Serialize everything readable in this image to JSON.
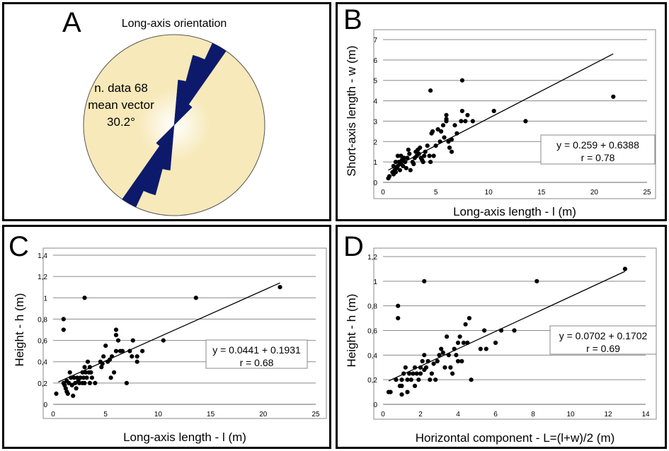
{
  "colors": {
    "rose": "#0d1a6b",
    "disc": "#f7e9b9",
    "grid": "#8a8a8a",
    "point": "#000000"
  },
  "chart_data": [
    {
      "panel": "A",
      "type": "rose",
      "title": "Long-axis orientation",
      "annotation": [
        "n. data 68",
        "mean vector",
        "30.2°"
      ],
      "petals": [
        {
          "azimuth": 10,
          "r": 0.5
        },
        {
          "azimuth": 20,
          "r": 0.8
        },
        {
          "azimuth": 30,
          "r": 1.0
        },
        {
          "azimuth": 40,
          "r": 0.28
        }
      ]
    },
    {
      "panel": "B",
      "type": "scatter",
      "xlabel": "Long-axis length - l (m)",
      "ylabel": "Short-axis length - w (m)",
      "xlim": [
        0,
        25
      ],
      "ylim": [
        0,
        7
      ],
      "xticks": [
        "0",
        "5",
        "10",
        "15",
        "20",
        "25"
      ],
      "yticks": [
        "0",
        "1",
        "2",
        "3",
        "4",
        "5",
        "6",
        "7"
      ],
      "fit_line": [
        [
          0.5,
          0.6
        ],
        [
          21.8,
          6.3
        ]
      ],
      "equation": "y = 0.259 + 0.6388",
      "r": "r = 0.78",
      "points": [
        [
          0.5,
          0.2
        ],
        [
          0.6,
          0.3
        ],
        [
          0.9,
          0.5
        ],
        [
          1.0,
          0.4
        ],
        [
          1.1,
          0.6
        ],
        [
          1.2,
          0.5
        ],
        [
          1.3,
          0.7
        ],
        [
          1.4,
          0.8
        ],
        [
          1.5,
          1.0
        ],
        [
          1.6,
          0.6
        ],
        [
          1.7,
          0.9
        ],
        [
          1.8,
          1.1
        ],
        [
          1.9,
          0.8
        ],
        [
          2.0,
          1.2
        ],
        [
          2.1,
          1.0
        ],
        [
          2.2,
          0.7
        ],
        [
          1.4,
          1.3
        ],
        [
          1.7,
          1.3
        ],
        [
          2.3,
          1.2
        ],
        [
          2.5,
          1.4
        ],
        [
          2.6,
          0.6
        ],
        [
          2.8,
          1.0
        ],
        [
          3.0,
          1.2
        ],
        [
          3.1,
          1.5
        ],
        [
          3.2,
          1.3
        ],
        [
          3.3,
          1.6
        ],
        [
          3.4,
          1.4
        ],
        [
          3.5,
          1.7
        ],
        [
          3.6,
          1.2
        ],
        [
          3.8,
          1.0
        ],
        [
          4.0,
          1.5
        ],
        [
          4.2,
          1.8
        ],
        [
          4.4,
          1.3
        ],
        [
          4.5,
          1.0
        ],
        [
          4.6,
          2.4
        ],
        [
          4.7,
          2.5
        ],
        [
          4.8,
          1.3
        ],
        [
          4.5,
          4.5
        ],
        [
          5.0,
          1.8
        ],
        [
          5.2,
          2.6
        ],
        [
          5.5,
          2.5
        ],
        [
          5.7,
          2.8
        ],
        [
          5.8,
          2.2
        ],
        [
          6.0,
          3.0
        ],
        [
          6.0,
          3.3
        ],
        [
          6.0,
          3.1
        ],
        [
          6.2,
          2.0
        ],
        [
          6.3,
          1.7
        ],
        [
          6.5,
          1.5
        ],
        [
          6.5,
          2.1
        ],
        [
          7.0,
          2.4
        ],
        [
          7.4,
          3.0
        ],
        [
          7.5,
          3.5
        ],
        [
          7.5,
          5.0
        ],
        [
          7.8,
          3.0
        ],
        [
          8.0,
          3.3
        ],
        [
          8.5,
          3.0
        ],
        [
          10.5,
          3.5
        ],
        [
          13.5,
          3.0
        ],
        [
          21.8,
          4.2
        ],
        [
          1.0,
          0.8
        ],
        [
          2.4,
          1.6
        ],
        [
          3.9,
          1.3
        ],
        [
          5.4,
          2.0
        ],
        [
          1.2,
          1.0
        ],
        [
          2.9,
          0.9
        ],
        [
          3.7,
          1.1
        ],
        [
          6.8,
          2.8
        ]
      ]
    },
    {
      "panel": "C",
      "type": "scatter",
      "xlabel": "Long-axis length - l (m)",
      "ylabel": "Height - h (m)",
      "xlim": [
        0,
        25
      ],
      "ylim": [
        0,
        1.4
      ],
      "xticks": [
        "0",
        "5",
        "10",
        "15",
        "20",
        "25"
      ],
      "yticks": [
        "0",
        "0,2",
        "0,4",
        "0,6",
        "0,8",
        "1",
        "1,2",
        "1,4"
      ],
      "fit_line": [
        [
          0.5,
          0.21
        ],
        [
          21.6,
          1.14
        ]
      ],
      "equation": "y = 0.0441 + 0.1931",
      "r": "r = 0.68",
      "points": [
        [
          0.3,
          0.1
        ],
        [
          1.0,
          0.8
        ],
        [
          1.0,
          0.7
        ],
        [
          1.0,
          0.2
        ],
        [
          1.1,
          0.18
        ],
        [
          1.2,
          0.15
        ],
        [
          1.3,
          0.22
        ],
        [
          1.4,
          0.1
        ],
        [
          1.5,
          0.2
        ],
        [
          1.6,
          0.3
        ],
        [
          1.7,
          0.25
        ],
        [
          1.8,
          0.18
        ],
        [
          1.9,
          0.08
        ],
        [
          2.0,
          0.25
        ],
        [
          2.1,
          0.2
        ],
        [
          2.2,
          0.15
        ],
        [
          2.3,
          0.25
        ],
        [
          2.5,
          0.2
        ],
        [
          2.6,
          0.25
        ],
        [
          2.8,
          0.2
        ],
        [
          2.8,
          0.3
        ],
        [
          2.9,
          0.25
        ],
        [
          3.0,
          0.2
        ],
        [
          3.0,
          0.35
        ],
        [
          3.0,
          1.0
        ],
        [
          3.1,
          0.3
        ],
        [
          3.2,
          0.25
        ],
        [
          3.3,
          0.4
        ],
        [
          3.4,
          0.3
        ],
        [
          3.5,
          0.35
        ],
        [
          3.5,
          0.2
        ],
        [
          3.7,
          0.25
        ],
        [
          4.0,
          0.2
        ],
        [
          4.5,
          0.4
        ],
        [
          4.6,
          0.35
        ],
        [
          4.8,
          0.45
        ],
        [
          5.0,
          0.55
        ],
        [
          5.2,
          0.4
        ],
        [
          5.5,
          0.25
        ],
        [
          5.6,
          0.45
        ],
        [
          5.8,
          0.3
        ],
        [
          6.0,
          0.7
        ],
        [
          6.0,
          0.65
        ],
        [
          6.0,
          0.5
        ],
        [
          6.2,
          0.6
        ],
        [
          6.4,
          0.5
        ],
        [
          6.6,
          0.5
        ],
        [
          7.0,
          0.2
        ],
        [
          7.3,
          0.5
        ],
        [
          7.6,
          0.6
        ],
        [
          7.5,
          0.45
        ],
        [
          8.0,
          0.45
        ],
        [
          8.0,
          0.4
        ],
        [
          8.5,
          0.5
        ],
        [
          10.5,
          0.6
        ],
        [
          13.6,
          1.0
        ],
        [
          21.6,
          1.1
        ],
        [
          2.4,
          0.22
        ],
        [
          1.3,
          0.12
        ],
        [
          3.6,
          0.3
        ],
        [
          4.7,
          0.38
        ],
        [
          5.4,
          0.42
        ]
      ]
    },
    {
      "panel": "D",
      "type": "scatter",
      "xlabel": "Horizontal component - L=(l+w)/2 (m)",
      "ylabel": "Height - h (m)",
      "xlim": [
        0,
        14
      ],
      "ylim": [
        0,
        1.2
      ],
      "xticks": [
        "0",
        "2",
        "4",
        "6",
        "8",
        "10",
        "12",
        "14"
      ],
      "yticks": [
        "0",
        "0,2",
        "0,4",
        "0,6",
        "0,8",
        "1",
        "1,2"
      ],
      "fit_line": [
        [
          0.3,
          0.19
        ],
        [
          12.9,
          1.08
        ]
      ],
      "equation": "y = 0.0702 + 0.1702",
      "r": "r = 0.69",
      "points": [
        [
          0.3,
          0.1
        ],
        [
          0.4,
          0.1
        ],
        [
          0.7,
          0.2
        ],
        [
          0.8,
          0.8
        ],
        [
          0.8,
          0.7
        ],
        [
          0.9,
          0.15
        ],
        [
          1.0,
          0.2
        ],
        [
          1.0,
          0.08
        ],
        [
          1.1,
          0.25
        ],
        [
          1.2,
          0.3
        ],
        [
          1.3,
          0.2
        ],
        [
          1.3,
          0.1
        ],
        [
          1.4,
          0.25
        ],
        [
          1.5,
          0.2
        ],
        [
          1.6,
          0.25
        ],
        [
          1.7,
          0.15
        ],
        [
          1.8,
          0.25
        ],
        [
          1.9,
          0.2
        ],
        [
          2.0,
          0.3
        ],
        [
          2.0,
          0.25
        ],
        [
          2.1,
          0.35
        ],
        [
          2.2,
          1.0
        ],
        [
          2.2,
          0.4
        ],
        [
          2.3,
          0.3
        ],
        [
          2.4,
          0.35
        ],
        [
          2.5,
          0.2
        ],
        [
          2.6,
          0.25
        ],
        [
          2.8,
          0.2
        ],
        [
          2.9,
          0.35
        ],
        [
          3.0,
          0.4
        ],
        [
          3.1,
          0.45
        ],
        [
          3.3,
          0.3
        ],
        [
          3.4,
          0.55
        ],
        [
          3.5,
          0.4
        ],
        [
          3.6,
          0.3
        ],
        [
          3.7,
          0.25
        ],
        [
          3.8,
          0.45
        ],
        [
          4.0,
          0.5
        ],
        [
          4.1,
          0.55
        ],
        [
          4.2,
          0.35
        ],
        [
          4.3,
          0.5
        ],
        [
          4.4,
          0.65
        ],
        [
          4.5,
          0.5
        ],
        [
          4.6,
          0.7
        ],
        [
          4.7,
          0.2
        ],
        [
          5.2,
          0.45
        ],
        [
          5.4,
          0.6
        ],
        [
          5.5,
          0.45
        ],
        [
          6.0,
          0.5
        ],
        [
          6.3,
          0.6
        ],
        [
          7.0,
          0.6
        ],
        [
          8.2,
          1.0
        ],
        [
          12.9,
          1.1
        ],
        [
          1.0,
          0.15
        ],
        [
          2.2,
          0.28
        ],
        [
          3.2,
          0.42
        ],
        [
          4.0,
          0.35
        ],
        [
          1.7,
          0.3
        ],
        [
          2.7,
          0.33
        ],
        [
          3.9,
          0.4
        ]
      ]
    }
  ]
}
